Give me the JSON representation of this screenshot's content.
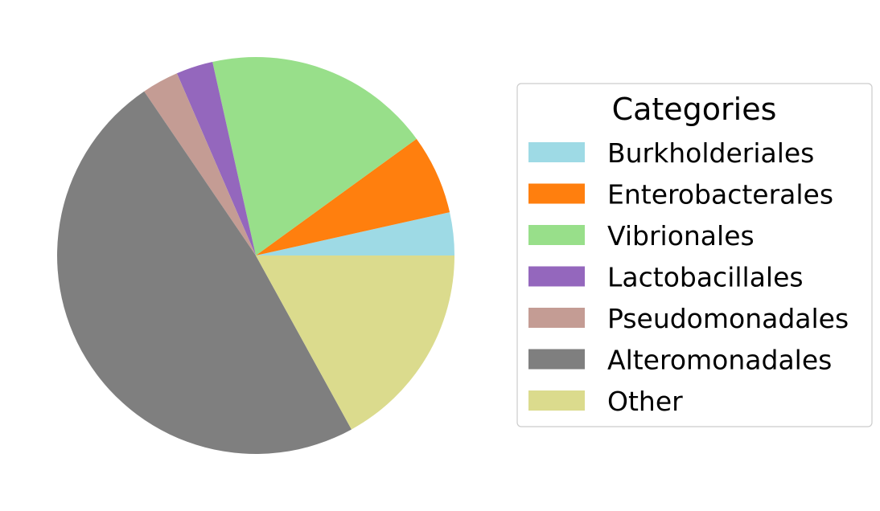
{
  "chart_data": {
    "type": "pie",
    "title": "",
    "legend": {
      "title": "Categories",
      "placement": "right"
    },
    "start_angle_deg": 0,
    "direction": "counterclockwise",
    "slices": [
      {
        "label": "Burkholderiales",
        "value": 3.5,
        "color": "#9edae5"
      },
      {
        "label": "Enterobacterales",
        "value": 6.5,
        "color": "#ff7f0e"
      },
      {
        "label": "Vibrionales",
        "value": 18.5,
        "color": "#98df8a"
      },
      {
        "label": "Lactobacillales",
        "value": 3.0,
        "color": "#9467bd"
      },
      {
        "label": "Pseudomonadales",
        "value": 3.0,
        "color": "#c49c94"
      },
      {
        "label": "Alteromonadales",
        "value": 48.5,
        "color": "#7f7f7f"
      },
      {
        "label": "Other",
        "value": 17.0,
        "color": "#dbdb8d"
      }
    ]
  }
}
